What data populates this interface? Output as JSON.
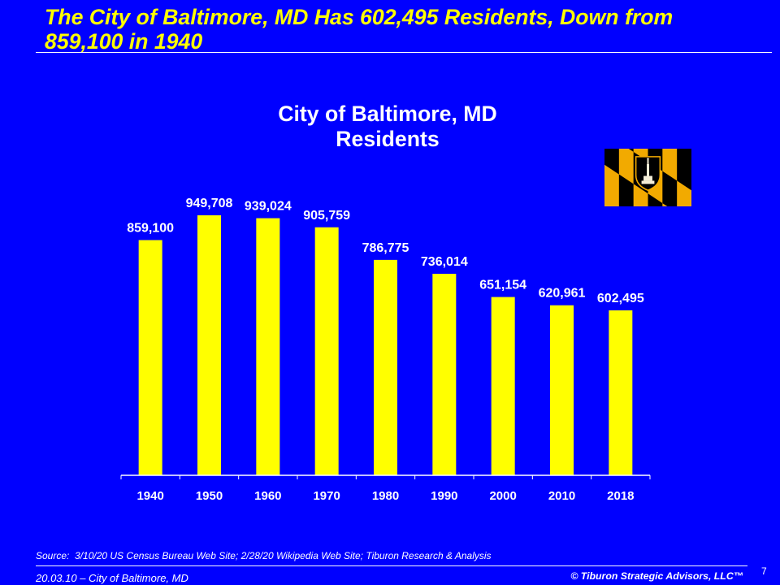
{
  "slide": {
    "title": "The City of Baltimore, MD Has 602,495 Residents, Down from 859,100 in 1940",
    "background_color": "#0000FF",
    "title_color": "#FFFF00",
    "text_color": "#FFFFFF"
  },
  "flag": {
    "icon": "baltimore-flag"
  },
  "chart_data": {
    "type": "bar",
    "title": "City of Baltimore, MD\nResidents",
    "categories": [
      "1940",
      "1950",
      "1960",
      "1970",
      "1980",
      "1990",
      "2000",
      "2010",
      "2018"
    ],
    "values": [
      859100,
      949708,
      939024,
      905759,
      786775,
      736014,
      651154,
      620961,
      602495
    ],
    "labels": [
      "859,100",
      "949,708",
      "939,024",
      "905,759",
      "786,775",
      "736,014",
      "651,154",
      "620,961",
      "602,495"
    ],
    "ylim": [
      0,
      1000000
    ],
    "grid": false,
    "legend": "none",
    "bar_color": "#FFFF00"
  },
  "footer": {
    "source": "Source:  3/10/20 US Census Bureau Web Site; 2/28/20 Wikipedia Web Site; Tiburon Research & Analysis",
    "date_label": "20.03.10 – City of Baltimore, MD",
    "copyright": "© Tiburon Strategic Advisors, LLC™",
    "page_number": "7"
  }
}
